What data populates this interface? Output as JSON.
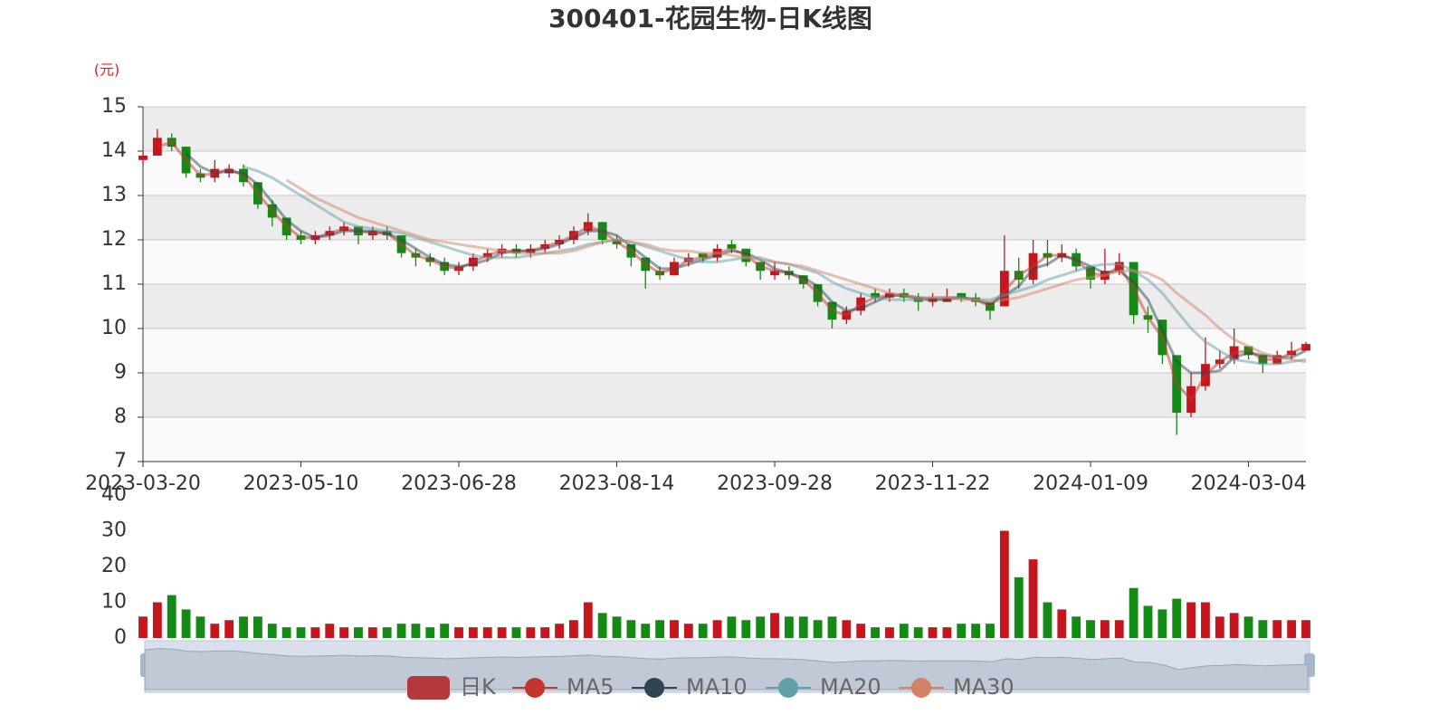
{
  "chart_data": {
    "type": "candlestick",
    "title": "300401-花园生物-日K线图",
    "y_unit": "(元)",
    "categories": [
      "2023-03-20",
      null,
      null,
      null,
      null,
      null,
      null,
      null,
      null,
      null,
      null,
      "2023-05-10",
      null,
      null,
      null,
      null,
      null,
      null,
      null,
      null,
      null,
      null,
      "2023-06-28",
      null,
      null,
      null,
      null,
      null,
      null,
      null,
      null,
      null,
      null,
      "2023-08-14",
      null,
      null,
      null,
      null,
      null,
      null,
      null,
      null,
      null,
      null,
      "2023-09-28",
      null,
      null,
      null,
      null,
      null,
      null,
      null,
      null,
      null,
      null,
      "2023-11-22",
      null,
      null,
      null,
      null,
      null,
      null,
      null,
      null,
      null,
      null,
      "2024-01-09",
      null,
      null,
      null,
      null,
      null,
      null,
      null,
      null,
      null,
      null,
      "2024-03-04",
      null,
      null,
      null,
      null
    ],
    "ylim": [
      7,
      15
    ],
    "yticks": [
      7,
      8,
      9,
      10,
      11,
      12,
      13,
      14,
      15
    ],
    "grid": true,
    "up_color": "#c4161c",
    "down_color": "#138a13",
    "series": [
      {
        "name": "日K",
        "color": "#b5393c",
        "values": [
          [
            13.8,
            13.9,
            13.7,
            14.0
          ],
          [
            13.9,
            14.3,
            13.9,
            14.5
          ],
          [
            14.3,
            14.1,
            14.0,
            14.4
          ],
          [
            14.1,
            13.5,
            13.4,
            14.1
          ],
          [
            13.5,
            13.4,
            13.3,
            13.6
          ],
          [
            13.4,
            13.6,
            13.3,
            13.8
          ],
          [
            13.5,
            13.6,
            13.4,
            13.7
          ],
          [
            13.6,
            13.3,
            13.2,
            13.7
          ],
          [
            13.3,
            12.8,
            12.7,
            13.3
          ],
          [
            12.8,
            12.5,
            12.3,
            12.9
          ],
          [
            12.5,
            12.1,
            12.0,
            12.5
          ],
          [
            12.1,
            12.0,
            11.9,
            12.2
          ],
          [
            12.0,
            12.1,
            11.9,
            12.2
          ],
          [
            12.1,
            12.2,
            12.0,
            12.3
          ],
          [
            12.2,
            12.3,
            12.1,
            12.4
          ],
          [
            12.3,
            12.1,
            11.9,
            12.3
          ],
          [
            12.1,
            12.2,
            12.0,
            12.3
          ],
          [
            12.2,
            12.1,
            12.0,
            12.3
          ],
          [
            12.1,
            11.7,
            11.6,
            12.1
          ],
          [
            11.7,
            11.6,
            11.4,
            11.8
          ],
          [
            11.6,
            11.5,
            11.4,
            11.7
          ],
          [
            11.5,
            11.3,
            11.2,
            11.6
          ],
          [
            11.3,
            11.4,
            11.2,
            11.5
          ],
          [
            11.4,
            11.6,
            11.3,
            11.7
          ],
          [
            11.6,
            11.7,
            11.5,
            11.8
          ],
          [
            11.7,
            11.8,
            11.6,
            11.9
          ],
          [
            11.8,
            11.7,
            11.6,
            11.9
          ],
          [
            11.7,
            11.8,
            11.6,
            11.9
          ],
          [
            11.8,
            11.9,
            11.7,
            12.0
          ],
          [
            11.9,
            12.0,
            11.8,
            12.1
          ],
          [
            12.0,
            12.2,
            11.9,
            12.3
          ],
          [
            12.2,
            12.4,
            12.1,
            12.6
          ],
          [
            12.4,
            12.0,
            11.9,
            12.4
          ],
          [
            12.0,
            11.9,
            11.8,
            12.1
          ],
          [
            11.9,
            11.6,
            11.4,
            11.9
          ],
          [
            11.6,
            11.3,
            10.9,
            11.6
          ],
          [
            11.3,
            11.2,
            11.1,
            11.4
          ],
          [
            11.2,
            11.5,
            11.2,
            11.6
          ],
          [
            11.5,
            11.6,
            11.4,
            11.7
          ],
          [
            11.7,
            11.6,
            11.5,
            11.7
          ],
          [
            11.6,
            11.8,
            11.5,
            11.9
          ],
          [
            11.9,
            11.8,
            11.7,
            12.0
          ],
          [
            11.8,
            11.5,
            11.4,
            11.8
          ],
          [
            11.5,
            11.3,
            11.1,
            11.5
          ],
          [
            11.2,
            11.3,
            11.1,
            11.5
          ],
          [
            11.3,
            11.2,
            11.1,
            11.4
          ],
          [
            11.2,
            11.0,
            10.9,
            11.2
          ],
          [
            11.0,
            10.6,
            10.5,
            11.0
          ],
          [
            10.6,
            10.2,
            10.0,
            10.6
          ],
          [
            10.2,
            10.4,
            10.1,
            10.5
          ],
          [
            10.4,
            10.7,
            10.3,
            10.8
          ],
          [
            10.8,
            10.7,
            10.6,
            10.9
          ],
          [
            10.7,
            10.8,
            10.6,
            10.9
          ],
          [
            10.8,
            10.7,
            10.6,
            10.9
          ],
          [
            10.7,
            10.6,
            10.4,
            10.8
          ],
          [
            10.6,
            10.7,
            10.5,
            10.8
          ],
          [
            10.6,
            10.7,
            10.6,
            10.9
          ],
          [
            10.8,
            10.7,
            10.6,
            10.8
          ],
          [
            10.7,
            10.6,
            10.5,
            10.8
          ],
          [
            10.6,
            10.4,
            10.2,
            10.6
          ],
          [
            10.5,
            11.3,
            10.5,
            12.1
          ],
          [
            11.3,
            11.1,
            10.9,
            11.6
          ],
          [
            11.1,
            11.7,
            11.0,
            12.0
          ],
          [
            11.7,
            11.6,
            11.4,
            12.0
          ],
          [
            11.6,
            11.7,
            11.5,
            11.9
          ],
          [
            11.7,
            11.4,
            11.3,
            11.8
          ],
          [
            11.4,
            11.1,
            10.9,
            11.4
          ],
          [
            11.1,
            11.3,
            11.0,
            11.8
          ],
          [
            11.3,
            11.5,
            11.2,
            11.7
          ],
          [
            11.5,
            10.3,
            10.1,
            11.5
          ],
          [
            10.3,
            10.2,
            9.9,
            10.5
          ],
          [
            10.2,
            9.4,
            9.2,
            10.2
          ],
          [
            9.4,
            8.1,
            7.6,
            9.4
          ],
          [
            8.1,
            8.7,
            8.0,
            9.0
          ],
          [
            8.7,
            9.2,
            8.6,
            9.8
          ],
          [
            9.2,
            9.3,
            9.1,
            9.5
          ],
          [
            9.3,
            9.6,
            9.2,
            10.0
          ],
          [
            9.6,
            9.4,
            9.3,
            9.6
          ],
          [
            9.4,
            9.2,
            9.0,
            9.4
          ],
          [
            9.2,
            9.4,
            9.2,
            9.5
          ],
          [
            9.4,
            9.5,
            9.3,
            9.7
          ],
          [
            9.5,
            9.65,
            9.5,
            9.7
          ]
        ]
      },
      {
        "name": "MA5",
        "color": "#c23531",
        "values": [
          null,
          14.1,
          14.2,
          13.8,
          13.45,
          13.5,
          13.6,
          13.45,
          13.05,
          12.65,
          12.3,
          12.05,
          12.05,
          12.15,
          12.25,
          12.2,
          12.15,
          12.15,
          11.9,
          11.65,
          11.55,
          11.4,
          11.35,
          11.5,
          11.65,
          11.75,
          11.75,
          11.75,
          11.85,
          11.95,
          12.1,
          12.3,
          12.2,
          11.95,
          11.75,
          11.45,
          11.25,
          11.35,
          11.55,
          11.6,
          11.7,
          11.8,
          11.65,
          11.4,
          11.3,
          11.25,
          11.1,
          10.8,
          10.4,
          10.3,
          10.55,
          10.7,
          10.75,
          10.75,
          10.65,
          10.65,
          10.7,
          10.7,
          10.65,
          10.5,
          10.85,
          11.2,
          11.4,
          11.65,
          11.65,
          11.55,
          11.25,
          11.2,
          11.4,
          10.9,
          10.25,
          9.8,
          8.75,
          8.4,
          8.95,
          9.25,
          9.45,
          9.5,
          9.3,
          9.3,
          9.45,
          9.6
        ]
      },
      {
        "name": "MA10",
        "color": "#2f4554",
        "values": [
          null,
          null,
          null,
          13.95,
          13.65,
          13.5,
          13.55,
          13.5,
          13.25,
          12.85,
          12.45,
          12.2,
          12.05,
          12.1,
          12.2,
          12.2,
          12.2,
          12.15,
          12.0,
          11.8,
          11.6,
          11.45,
          11.4,
          11.45,
          11.55,
          11.7,
          11.75,
          11.75,
          11.8,
          11.9,
          12.05,
          12.2,
          12.2,
          12.1,
          11.85,
          11.6,
          11.35,
          11.35,
          11.45,
          11.55,
          11.65,
          11.75,
          11.7,
          11.55,
          11.35,
          11.25,
          11.15,
          10.95,
          10.6,
          10.4,
          10.45,
          10.6,
          10.75,
          10.75,
          10.7,
          10.65,
          10.65,
          10.7,
          10.65,
          10.55,
          10.75,
          10.95,
          11.35,
          11.45,
          11.65,
          11.55,
          11.4,
          11.25,
          11.3,
          11.05,
          10.65,
          9.95,
          9.25,
          9.0,
          9.0,
          9.05,
          9.35,
          9.45,
          9.4,
          9.35,
          9.35,
          9.5
        ]
      },
      {
        "name": "MA20",
        "color": "#61a0a8",
        "values": [
          null,
          null,
          null,
          null,
          null,
          null,
          null,
          13.65,
          13.55,
          13.4,
          13.2,
          13.0,
          12.8,
          12.6,
          12.4,
          12.3,
          12.25,
          12.2,
          12.15,
          12.05,
          11.95,
          11.85,
          11.75,
          11.65,
          11.6,
          11.6,
          11.6,
          11.65,
          11.7,
          11.75,
          11.8,
          11.9,
          11.95,
          12.0,
          11.95,
          11.85,
          11.75,
          11.65,
          11.55,
          11.5,
          11.5,
          11.55,
          11.6,
          11.6,
          11.5,
          11.45,
          11.35,
          11.25,
          11.05,
          10.9,
          10.8,
          10.7,
          10.65,
          10.65,
          10.65,
          10.7,
          10.7,
          10.7,
          10.65,
          10.65,
          10.75,
          10.85,
          10.95,
          11.1,
          11.2,
          11.3,
          11.4,
          11.45,
          11.45,
          11.3,
          11.1,
          10.8,
          10.4,
          10.0,
          9.7,
          9.5,
          9.3,
          9.25,
          9.2,
          9.2,
          9.25,
          9.3
        ]
      },
      {
        "name": "MA30",
        "color": "#d48265",
        "values": [
          null,
          null,
          null,
          null,
          null,
          null,
          null,
          null,
          null,
          null,
          13.35,
          13.15,
          12.95,
          12.8,
          12.65,
          12.5,
          12.4,
          12.3,
          12.2,
          12.1,
          12.0,
          11.95,
          11.9,
          11.85,
          11.8,
          11.75,
          11.7,
          11.7,
          11.7,
          11.7,
          11.75,
          11.85,
          11.95,
          12.0,
          11.95,
          11.9,
          11.8,
          11.75,
          11.75,
          11.7,
          11.7,
          11.65,
          11.6,
          11.55,
          11.5,
          11.45,
          11.4,
          11.3,
          11.2,
          11.1,
          11.0,
          10.9,
          10.8,
          10.75,
          10.7,
          10.7,
          10.7,
          10.65,
          10.65,
          10.6,
          10.65,
          10.7,
          10.8,
          10.9,
          11.0,
          11.1,
          11.15,
          11.2,
          11.3,
          11.3,
          11.25,
          11.1,
          10.8,
          10.55,
          10.3,
          10.0,
          9.75,
          9.6,
          9.45,
          9.35,
          9.3,
          9.25
        ]
      }
    ],
    "volume": {
      "values": [
        6,
        10,
        12,
        8,
        6,
        4,
        5,
        6,
        6,
        4,
        3,
        3,
        3,
        4,
        3,
        3,
        3,
        3,
        4,
        4,
        3,
        4,
        3,
        3,
        3,
        3,
        3,
        3,
        3,
        4,
        5,
        10,
        7,
        6,
        5,
        4,
        5,
        5,
        4,
        4,
        5,
        6,
        5,
        6,
        7,
        6,
        6,
        5,
        6,
        5,
        4,
        3,
        3,
        4,
        3,
        3,
        3,
        4,
        4,
        4,
        30,
        17,
        22,
        10,
        8,
        6,
        5,
        5,
        5,
        14,
        9,
        8,
        11,
        10,
        10,
        6,
        7,
        6,
        5,
        5,
        5,
        5
      ],
      "ylim": [
        0,
        40
      ],
      "yticks": [
        0,
        10,
        20,
        30,
        40
      ]
    }
  }
}
